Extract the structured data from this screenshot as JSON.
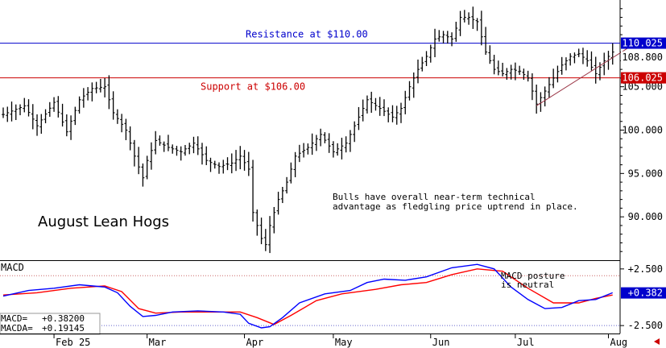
{
  "chart_data": [
    {
      "type": "ohlc",
      "title": "August Lean Hogs",
      "ylim": [
        85,
        115
      ],
      "y_ticks": [
        "90.000",
        "95.000",
        "100.000",
        "105.000"
      ],
      "y_tick_values": [
        90,
        95,
        100,
        105
      ],
      "x_ticks": [
        "Feb 25",
        "Mar",
        "Apr",
        "May",
        "Jun",
        "Jul",
        "Aug"
      ],
      "x_tick_index": [
        12,
        34,
        57,
        78,
        101,
        121,
        143
      ],
      "price_points": [
        [
          0,
          101.8
        ],
        [
          5,
          102.8
        ],
        [
          8,
          100.5
        ],
        [
          12,
          103.2
        ],
        [
          15,
          99.8
        ],
        [
          18,
          103.5
        ],
        [
          21,
          104.8
        ],
        [
          24,
          105.0
        ],
        [
          26,
          102.0
        ],
        [
          29,
          100.0
        ],
        [
          31,
          97.0
        ],
        [
          33,
          94.5
        ],
        [
          34,
          96.5
        ],
        [
          36,
          98.8
        ],
        [
          39,
          98.0
        ],
        [
          42,
          97.5
        ],
        [
          45,
          98.5
        ],
        [
          48,
          96.5
        ],
        [
          51,
          95.8
        ],
        [
          54,
          96.2
        ],
        [
          56,
          97.0
        ],
        [
          58,
          95.5
        ],
        [
          59,
          90.5
        ],
        [
          61,
          87.5
        ],
        [
          62,
          86.8
        ],
        [
          63,
          89.0
        ],
        [
          65,
          92.0
        ],
        [
          67,
          94.0
        ],
        [
          69,
          97.0
        ],
        [
          72,
          98.0
        ],
        [
          75,
          99.5
        ],
        [
          78,
          97.5
        ],
        [
          81,
          98.5
        ],
        [
          84,
          101.5
        ],
        [
          86,
          103.5
        ],
        [
          89,
          102.5
        ],
        [
          92,
          101.5
        ],
        [
          94,
          102.5
        ],
        [
          96,
          105.0
        ],
        [
          98,
          107.0
        ],
        [
          100,
          108.5
        ],
        [
          102,
          110.5
        ],
        [
          104,
          111.0
        ],
        [
          106,
          110.5
        ],
        [
          108,
          113.0
        ],
        [
          110,
          113.0
        ],
        [
          112,
          112.5
        ],
        [
          114,
          109.0
        ],
        [
          116,
          107.0
        ],
        [
          118,
          106.5
        ],
        [
          120,
          107.0
        ],
        [
          122,
          106.8
        ],
        [
          124,
          106.0
        ],
        [
          126,
          103.0
        ],
        [
          128,
          104.5
        ],
        [
          130,
          106.0
        ],
        [
          132,
          107.5
        ],
        [
          134,
          108.5
        ],
        [
          136,
          108.8
        ],
        [
          138,
          108.0
        ],
        [
          140,
          106.5
        ],
        [
          142,
          108.0
        ],
        [
          144,
          109.0
        ]
      ],
      "n_bars": 145,
      "last_price": "108.800",
      "resistance": {
        "value": 110.025,
        "label": "Resistance at $110.00",
        "tag": "110.025",
        "color": "#0000cc"
      },
      "support": {
        "value": 106.025,
        "label": "Support at $106.00",
        "tag": "106.025",
        "color": "#cc0000"
      },
      "trendline": {
        "from": [
          126,
          102.8
        ],
        "to": [
          150,
          110.2
        ],
        "color": "#993344"
      },
      "annotation": [
        "Bulls have overall near-term technical",
        "advantage as fledgling price uptrend in place."
      ]
    },
    {
      "type": "line",
      "title": "MACD",
      "ylim": [
        -3.2,
        3.2
      ],
      "y_ticks": [
        "+2.500",
        "-2.500"
      ],
      "y_tick_values": [
        2.5,
        -2.5
      ],
      "reference_lines": [
        1.9,
        -2.5
      ],
      "series": [
        {
          "name": "MACD",
          "color": "#0000ff",
          "points": [
            [
              0,
              0.1
            ],
            [
              6,
              0.6
            ],
            [
              12,
              0.8
            ],
            [
              18,
              1.1
            ],
            [
              24,
              0.9
            ],
            [
              27,
              0.4
            ],
            [
              30,
              -0.8
            ],
            [
              33,
              -1.7
            ],
            [
              36,
              -1.6
            ],
            [
              40,
              -1.3
            ],
            [
              46,
              -1.2
            ],
            [
              52,
              -1.3
            ],
            [
              56,
              -1.5
            ],
            [
              58,
              -2.3
            ],
            [
              61,
              -2.7
            ],
            [
              63,
              -2.6
            ],
            [
              66,
              -1.8
            ],
            [
              70,
              -0.5
            ],
            [
              76,
              0.3
            ],
            [
              82,
              0.6
            ],
            [
              86,
              1.3
            ],
            [
              90,
              1.6
            ],
            [
              95,
              1.5
            ],
            [
              100,
              1.8
            ],
            [
              106,
              2.6
            ],
            [
              112,
              2.9
            ],
            [
              116,
              2.5
            ],
            [
              120,
              0.9
            ],
            [
              124,
              -0.2
            ],
            [
              128,
              -1.0
            ],
            [
              132,
              -0.9
            ],
            [
              136,
              -0.3
            ],
            [
              140,
              -0.2
            ],
            [
              144,
              0.4
            ]
          ]
        },
        {
          "name": "MACDA",
          "color": "#ff0000",
          "points": [
            [
              0,
              0.2
            ],
            [
              8,
              0.4
            ],
            [
              16,
              0.8
            ],
            [
              24,
              1.0
            ],
            [
              28,
              0.5
            ],
            [
              32,
              -1.0
            ],
            [
              36,
              -1.4
            ],
            [
              42,
              -1.3
            ],
            [
              50,
              -1.3
            ],
            [
              56,
              -1.3
            ],
            [
              60,
              -1.8
            ],
            [
              64,
              -2.4
            ],
            [
              68,
              -1.6
            ],
            [
              74,
              -0.3
            ],
            [
              80,
              0.3
            ],
            [
              88,
              0.7
            ],
            [
              94,
              1.1
            ],
            [
              100,
              1.3
            ],
            [
              106,
              2.0
            ],
            [
              112,
              2.5
            ],
            [
              118,
              2.3
            ],
            [
              124,
              0.8
            ],
            [
              130,
              -0.5
            ],
            [
              136,
              -0.5
            ],
            [
              140,
              -0.1
            ],
            [
              144,
              0.2
            ]
          ]
        }
      ],
      "last_value": "+0.382",
      "readout": [
        {
          "label": "MACD=",
          "value": "+0.38200"
        },
        {
          "label": "MACDA=",
          "value": "+0.19145"
        }
      ],
      "annotation": [
        "MACD posture",
        "is neutral"
      ]
    }
  ]
}
